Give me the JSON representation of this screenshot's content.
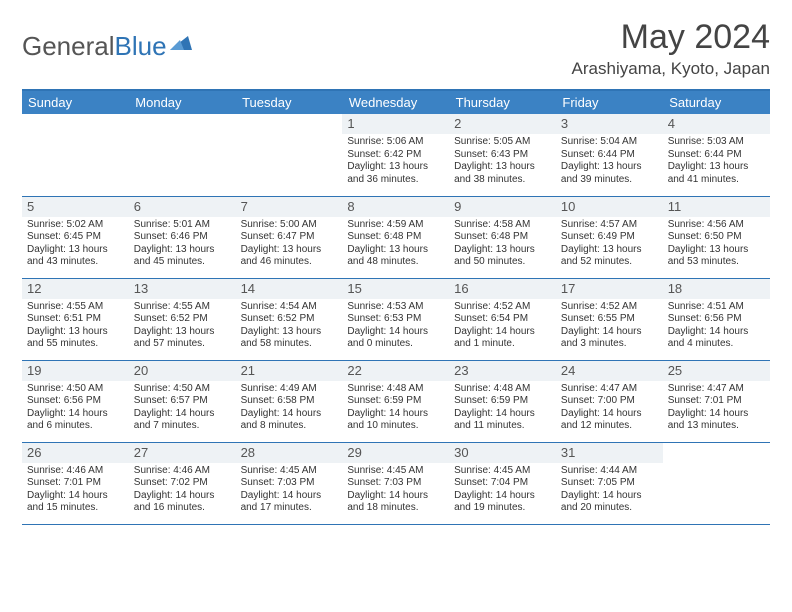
{
  "logo": {
    "part1": "General",
    "part2": "Blue"
  },
  "title": "May 2024",
  "location": "Arashiyama, Kyoto, Japan",
  "colors": {
    "header_bg": "#3b82c4",
    "header_text": "#ffffff",
    "border": "#2f74b5",
    "daynum_bg": "#eef2f5",
    "text": "#333333",
    "logo_gray": "#555555",
    "logo_blue": "#2f74b5"
  },
  "day_names": [
    "Sunday",
    "Monday",
    "Tuesday",
    "Wednesday",
    "Thursday",
    "Friday",
    "Saturday"
  ],
  "weeks": [
    [
      {
        "n": "",
        "lines": []
      },
      {
        "n": "",
        "lines": []
      },
      {
        "n": "",
        "lines": []
      },
      {
        "n": "1",
        "lines": [
          "Sunrise: 5:06 AM",
          "Sunset: 6:42 PM",
          "Daylight: 13 hours",
          "and 36 minutes."
        ]
      },
      {
        "n": "2",
        "lines": [
          "Sunrise: 5:05 AM",
          "Sunset: 6:43 PM",
          "Daylight: 13 hours",
          "and 38 minutes."
        ]
      },
      {
        "n": "3",
        "lines": [
          "Sunrise: 5:04 AM",
          "Sunset: 6:44 PM",
          "Daylight: 13 hours",
          "and 39 minutes."
        ]
      },
      {
        "n": "4",
        "lines": [
          "Sunrise: 5:03 AM",
          "Sunset: 6:44 PM",
          "Daylight: 13 hours",
          "and 41 minutes."
        ]
      }
    ],
    [
      {
        "n": "5",
        "lines": [
          "Sunrise: 5:02 AM",
          "Sunset: 6:45 PM",
          "Daylight: 13 hours",
          "and 43 minutes."
        ]
      },
      {
        "n": "6",
        "lines": [
          "Sunrise: 5:01 AM",
          "Sunset: 6:46 PM",
          "Daylight: 13 hours",
          "and 45 minutes."
        ]
      },
      {
        "n": "7",
        "lines": [
          "Sunrise: 5:00 AM",
          "Sunset: 6:47 PM",
          "Daylight: 13 hours",
          "and 46 minutes."
        ]
      },
      {
        "n": "8",
        "lines": [
          "Sunrise: 4:59 AM",
          "Sunset: 6:48 PM",
          "Daylight: 13 hours",
          "and 48 minutes."
        ]
      },
      {
        "n": "9",
        "lines": [
          "Sunrise: 4:58 AM",
          "Sunset: 6:48 PM",
          "Daylight: 13 hours",
          "and 50 minutes."
        ]
      },
      {
        "n": "10",
        "lines": [
          "Sunrise: 4:57 AM",
          "Sunset: 6:49 PM",
          "Daylight: 13 hours",
          "and 52 minutes."
        ]
      },
      {
        "n": "11",
        "lines": [
          "Sunrise: 4:56 AM",
          "Sunset: 6:50 PM",
          "Daylight: 13 hours",
          "and 53 minutes."
        ]
      }
    ],
    [
      {
        "n": "12",
        "lines": [
          "Sunrise: 4:55 AM",
          "Sunset: 6:51 PM",
          "Daylight: 13 hours",
          "and 55 minutes."
        ]
      },
      {
        "n": "13",
        "lines": [
          "Sunrise: 4:55 AM",
          "Sunset: 6:52 PM",
          "Daylight: 13 hours",
          "and 57 minutes."
        ]
      },
      {
        "n": "14",
        "lines": [
          "Sunrise: 4:54 AM",
          "Sunset: 6:52 PM",
          "Daylight: 13 hours",
          "and 58 minutes."
        ]
      },
      {
        "n": "15",
        "lines": [
          "Sunrise: 4:53 AM",
          "Sunset: 6:53 PM",
          "Daylight: 14 hours",
          "and 0 minutes."
        ]
      },
      {
        "n": "16",
        "lines": [
          "Sunrise: 4:52 AM",
          "Sunset: 6:54 PM",
          "Daylight: 14 hours",
          "and 1 minute."
        ]
      },
      {
        "n": "17",
        "lines": [
          "Sunrise: 4:52 AM",
          "Sunset: 6:55 PM",
          "Daylight: 14 hours",
          "and 3 minutes."
        ]
      },
      {
        "n": "18",
        "lines": [
          "Sunrise: 4:51 AM",
          "Sunset: 6:56 PM",
          "Daylight: 14 hours",
          "and 4 minutes."
        ]
      }
    ],
    [
      {
        "n": "19",
        "lines": [
          "Sunrise: 4:50 AM",
          "Sunset: 6:56 PM",
          "Daylight: 14 hours",
          "and 6 minutes."
        ]
      },
      {
        "n": "20",
        "lines": [
          "Sunrise: 4:50 AM",
          "Sunset: 6:57 PM",
          "Daylight: 14 hours",
          "and 7 minutes."
        ]
      },
      {
        "n": "21",
        "lines": [
          "Sunrise: 4:49 AM",
          "Sunset: 6:58 PM",
          "Daylight: 14 hours",
          "and 8 minutes."
        ]
      },
      {
        "n": "22",
        "lines": [
          "Sunrise: 4:48 AM",
          "Sunset: 6:59 PM",
          "Daylight: 14 hours",
          "and 10 minutes."
        ]
      },
      {
        "n": "23",
        "lines": [
          "Sunrise: 4:48 AM",
          "Sunset: 6:59 PM",
          "Daylight: 14 hours",
          "and 11 minutes."
        ]
      },
      {
        "n": "24",
        "lines": [
          "Sunrise: 4:47 AM",
          "Sunset: 7:00 PM",
          "Daylight: 14 hours",
          "and 12 minutes."
        ]
      },
      {
        "n": "25",
        "lines": [
          "Sunrise: 4:47 AM",
          "Sunset: 7:01 PM",
          "Daylight: 14 hours",
          "and 13 minutes."
        ]
      }
    ],
    [
      {
        "n": "26",
        "lines": [
          "Sunrise: 4:46 AM",
          "Sunset: 7:01 PM",
          "Daylight: 14 hours",
          "and 15 minutes."
        ]
      },
      {
        "n": "27",
        "lines": [
          "Sunrise: 4:46 AM",
          "Sunset: 7:02 PM",
          "Daylight: 14 hours",
          "and 16 minutes."
        ]
      },
      {
        "n": "28",
        "lines": [
          "Sunrise: 4:45 AM",
          "Sunset: 7:03 PM",
          "Daylight: 14 hours",
          "and 17 minutes."
        ]
      },
      {
        "n": "29",
        "lines": [
          "Sunrise: 4:45 AM",
          "Sunset: 7:03 PM",
          "Daylight: 14 hours",
          "and 18 minutes."
        ]
      },
      {
        "n": "30",
        "lines": [
          "Sunrise: 4:45 AM",
          "Sunset: 7:04 PM",
          "Daylight: 14 hours",
          "and 19 minutes."
        ]
      },
      {
        "n": "31",
        "lines": [
          "Sunrise: 4:44 AM",
          "Sunset: 7:05 PM",
          "Daylight: 14 hours",
          "and 20 minutes."
        ]
      },
      {
        "n": "",
        "lines": []
      }
    ]
  ]
}
